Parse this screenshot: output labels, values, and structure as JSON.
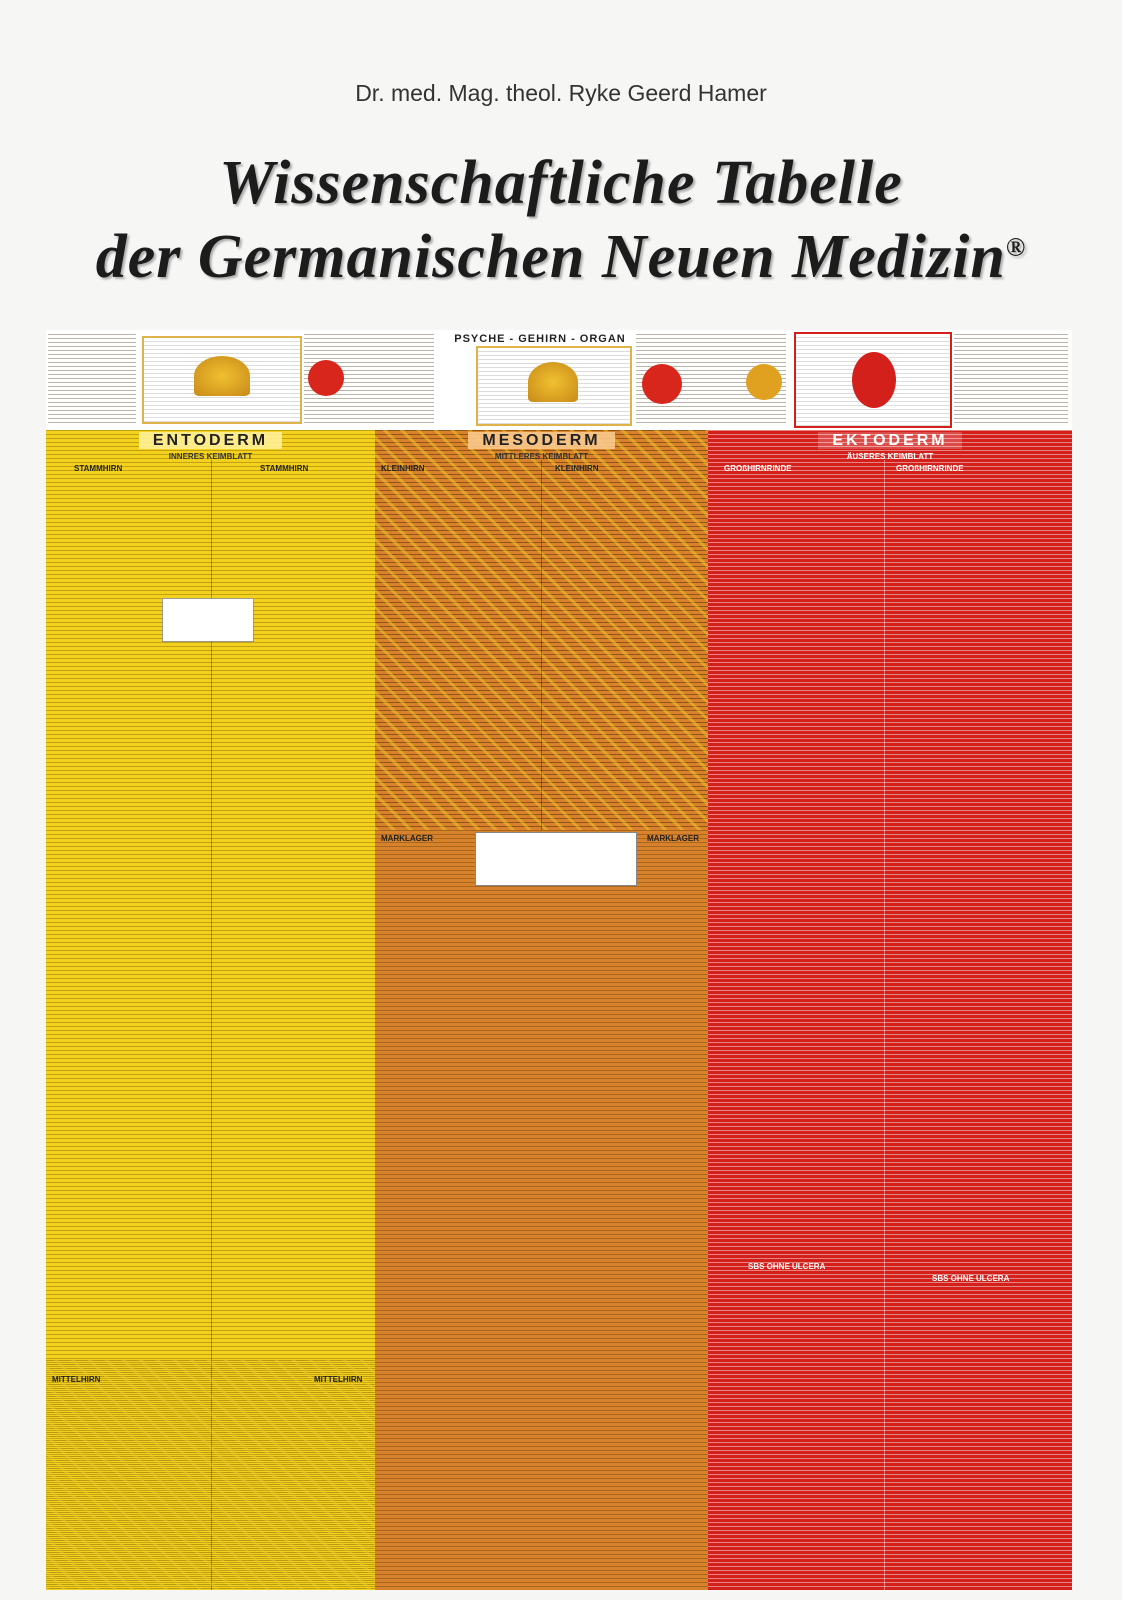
{
  "author": "Dr. med. Mag. theol. Ryke Geerd Hamer",
  "title": [
    "Wissenschaftliche Tabelle",
    "der Germanischen Neuen Medizin"
  ],
  "trademark": "®",
  "poster": {
    "header": "PSYCHE - GEHIRN - ORGAN",
    "columns": [
      {
        "name": "ENTODERM",
        "subtitle": "INNERES KEIMBLATT",
        "sections": [
          "STAMMHIRN",
          "STAMMHIRN"
        ],
        "footer": [
          "MITTELHIRN",
          "MITTELHIRN"
        ]
      },
      {
        "name": "MESODERM",
        "subtitle": "MITTLERES KEIMBLATT",
        "sections": [
          "KLEINHIRN",
          "KLEINHIRN"
        ],
        "middle": [
          "MARKLAGER",
          "MARKLAGER"
        ]
      },
      {
        "name": "EKTODERM",
        "subtitle": "ÄUSERES KEIMBLATT",
        "sections": [
          "GROßHIRNRINDE",
          "GROßHIRNRINDE"
        ],
        "middle": [
          "SBS OHNE ULCERA",
          "SBS OHNE ULCERA"
        ]
      }
    ]
  }
}
